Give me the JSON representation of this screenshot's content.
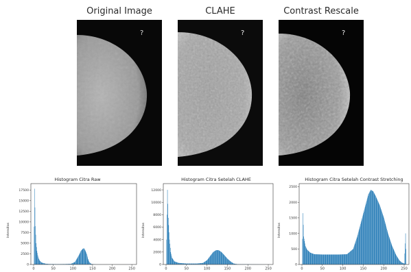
{
  "images": [
    {
      "title": "Original Image"
    },
    {
      "title": "CLAHE"
    },
    {
      "title": "Contrast Rescale"
    }
  ],
  "colors": {
    "bar": "#1f77b4",
    "axis": "#333333",
    "panel_bg": "#0a0a0a"
  },
  "chart_data": [
    {
      "type": "bar",
      "title": "Histogram Citra Raw",
      "xlabel": "",
      "ylabel": "Intensitas",
      "xlim": [
        0,
        255
      ],
      "ylim": [
        0,
        19000
      ],
      "x_ticks": [
        0,
        50,
        100,
        150,
        200,
        250
      ],
      "y_ticks": [
        0,
        2500,
        5000,
        7500,
        10000,
        12500,
        15000,
        17500
      ],
      "series": [
        {
          "points": [
            [
              0,
              0
            ],
            [
              2,
              17800
            ],
            [
              4,
              9000
            ],
            [
              6,
              5000
            ],
            [
              8,
              3200
            ],
            [
              10,
              2200
            ],
            [
              12,
              1500
            ],
            [
              15,
              900
            ],
            [
              20,
              450
            ],
            [
              30,
              180
            ],
            [
              40,
              100
            ],
            [
              60,
              80
            ],
            [
              80,
              100
            ],
            [
              95,
              150
            ],
            [
              105,
              600
            ],
            [
              110,
              1400
            ],
            [
              115,
              2200
            ],
            [
              120,
              3200
            ],
            [
              125,
              3700
            ],
            [
              128,
              3800
            ],
            [
              131,
              3300
            ],
            [
              135,
              2400
            ],
            [
              138,
              1300
            ],
            [
              141,
              600
            ],
            [
              145,
              200
            ],
            [
              150,
              60
            ],
            [
              160,
              10
            ],
            [
              255,
              0
            ]
          ]
        }
      ]
    },
    {
      "type": "bar",
      "title": "Histogram Citra Setelah CLAHE",
      "xlabel": "",
      "ylabel": "Intensitas",
      "xlim": [
        0,
        255
      ],
      "ylim": [
        0,
        13000
      ],
      "x_ticks": [
        0,
        50,
        100,
        150,
        200,
        250
      ],
      "y_ticks": [
        0,
        2000,
        4000,
        6000,
        8000,
        10000,
        12000
      ],
      "series": [
        {
          "points": [
            [
              0,
              0
            ],
            [
              3,
              12000
            ],
            [
              5,
              7500
            ],
            [
              8,
              4000
            ],
            [
              11,
              2000
            ],
            [
              14,
              1100
            ],
            [
              20,
              500
            ],
            [
              30,
              250
            ],
            [
              50,
              150
            ],
            [
              75,
              150
            ],
            [
              90,
              250
            ],
            [
              100,
              700
            ],
            [
              108,
              1400
            ],
            [
              115,
              2000
            ],
            [
              122,
              2300
            ],
            [
              128,
              2300
            ],
            [
              135,
              2000
            ],
            [
              142,
              1500
            ],
            [
              150,
              900
            ],
            [
              158,
              450
            ],
            [
              165,
              150
            ],
            [
              175,
              40
            ],
            [
              255,
              0
            ]
          ]
        }
      ]
    },
    {
      "type": "bar",
      "title": "Histogram Citra Setelah Contrast Stretching",
      "xlabel": "",
      "ylabel": "Intensitas",
      "xlim": [
        0,
        255
      ],
      "ylim": [
        0,
        2600
      ],
      "x_ticks": [
        0,
        50,
        100,
        150,
        200,
        250
      ],
      "y_ticks": [
        0,
        500,
        1000,
        1500,
        2000,
        2500
      ],
      "series": [
        {
          "points": [
            [
              0,
              0
            ],
            [
              2,
              1650
            ],
            [
              4,
              900
            ],
            [
              8,
              600
            ],
            [
              12,
              480
            ],
            [
              20,
              380
            ],
            [
              30,
              330
            ],
            [
              50,
              320
            ],
            [
              70,
              320
            ],
            [
              90,
              320
            ],
            [
              110,
              330
            ],
            [
              125,
              500
            ],
            [
              135,
              900
            ],
            [
              145,
              1400
            ],
            [
              155,
              1900
            ],
            [
              162,
              2250
            ],
            [
              168,
              2400
            ],
            [
              174,
              2350
            ],
            [
              180,
              2200
            ],
            [
              190,
              1900
            ],
            [
              200,
              1500
            ],
            [
              210,
              1000
            ],
            [
              220,
              600
            ],
            [
              230,
              300
            ],
            [
              238,
              130
            ],
            [
              244,
              60
            ],
            [
              250,
              30
            ],
            [
              253,
              1000
            ],
            [
              255,
              0
            ]
          ]
        }
      ]
    }
  ]
}
